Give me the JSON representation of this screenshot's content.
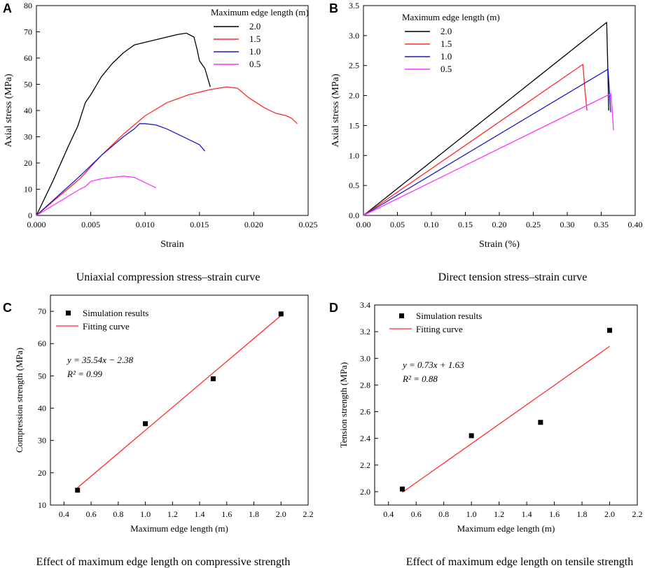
{
  "figure": {
    "panels": [
      {
        "letter": "A",
        "caption": "Uniaxial compression stress–strain curve"
      },
      {
        "letter": "B",
        "caption": "Direct tension stress–strain curve"
      },
      {
        "letter": "C",
        "caption": "Effect of maximum edge length on compressive strength"
      },
      {
        "letter": "D",
        "caption": "Effect of maximum edge length on tensile strength"
      }
    ]
  },
  "chart_data": [
    {
      "id": "A",
      "type": "line",
      "xlabel": "Strain",
      "ylabel": "Axial stress (MPa)",
      "xlim": [
        0,
        0.025
      ],
      "ylim": [
        0,
        80
      ],
      "xticks": [
        "0.000",
        "0.005",
        "0.010",
        "0.015",
        "0.020",
        "0.025"
      ],
      "yticks": [
        "0",
        "10",
        "20",
        "30",
        "40",
        "50",
        "60",
        "70",
        "80"
      ],
      "legend_title": "Maximum edge length (m)",
      "legend_position": "top-right",
      "series": [
        {
          "name": "2.0",
          "color": "#000000",
          "x": [
            0,
            0.0015,
            0.003,
            0.0038,
            0.0045,
            0.005,
            0.006,
            0.007,
            0.008,
            0.009,
            0.01,
            0.011,
            0.012,
            0.013,
            0.0138,
            0.0145,
            0.0148,
            0.015,
            0.0155,
            0.016
          ],
          "y": [
            0,
            13,
            27,
            34,
            43,
            46,
            53,
            58,
            62,
            65,
            66,
            67,
            68,
            69,
            69.5,
            68,
            63,
            59,
            56,
            49
          ]
        },
        {
          "name": "1.5",
          "color": "#ff2a2a",
          "x": [
            0,
            0.002,
            0.004,
            0.006,
            0.008,
            0.01,
            0.012,
            0.014,
            0.016,
            0.0175,
            0.0185,
            0.0195,
            0.021,
            0.022,
            0.023,
            0.0235,
            0.024
          ],
          "y": [
            0,
            7,
            14,
            23,
            31,
            38,
            43,
            46,
            48,
            49,
            48.5,
            45,
            41,
            39,
            38,
            37,
            35
          ]
        },
        {
          "name": "1.0",
          "color": "#1a1acc",
          "x": [
            0,
            0.002,
            0.004,
            0.006,
            0.008,
            0.009,
            0.0095,
            0.01,
            0.011,
            0.012,
            0.013,
            0.014,
            0.015,
            0.0155
          ],
          "y": [
            0,
            7.5,
            15,
            23,
            30,
            33,
            35,
            35,
            34.5,
            33,
            31,
            29,
            27,
            24.5
          ]
        },
        {
          "name": "0.5",
          "color": "#ff33ff",
          "x": [
            0,
            0.002,
            0.004,
            0.0045,
            0.005,
            0.006,
            0.007,
            0.008,
            0.009,
            0.01,
            0.011
          ],
          "y": [
            0,
            5,
            10,
            11,
            13,
            14,
            14.5,
            15,
            14.5,
            12.5,
            10.5
          ]
        }
      ]
    },
    {
      "id": "B",
      "type": "line",
      "xlabel": "Strain (%)",
      "ylabel": "Axial stress (MPa)",
      "xlim": [
        0,
        0.4
      ],
      "ylim": [
        0,
        3.5
      ],
      "xticks": [
        "0.00",
        "0.05",
        "0.10",
        "0.15",
        "0.20",
        "0.25",
        "0.30",
        "0.35",
        "0.40"
      ],
      "yticks": [
        "0.0",
        "0.5",
        "1.0",
        "1.5",
        "2.0",
        "2.5",
        "3.0",
        "3.5"
      ],
      "legend_title": "Maximum edge length (m)",
      "legend_position": "top-left",
      "series": [
        {
          "name": "2.0",
          "color": "#000000",
          "x": [
            0,
            0.358,
            0.36,
            0.361
          ],
          "y": [
            0,
            3.22,
            2.3,
            1.75
          ]
        },
        {
          "name": "1.5",
          "color": "#ff2a2a",
          "x": [
            0,
            0.323,
            0.326,
            0.329
          ],
          "y": [
            0,
            2.52,
            2.1,
            1.75
          ]
        },
        {
          "name": "1.0",
          "color": "#1a1acc",
          "x": [
            0,
            0.36,
            0.362,
            0.364
          ],
          "y": [
            0,
            2.44,
            2.1,
            1.72
          ]
        },
        {
          "name": "0.5",
          "color": "#ff33ff",
          "x": [
            0,
            0.364,
            0.366,
            0.368
          ],
          "y": [
            0,
            2.03,
            1.8,
            1.42
          ]
        }
      ]
    },
    {
      "id": "C",
      "type": "scatter",
      "xlabel": "Maximum edge length (m)",
      "ylabel": "Compression strength (MPa)",
      "xlim": [
        0.3,
        2.2
      ],
      "ylim": [
        10,
        75
      ],
      "xticks": [
        "0.4",
        "0.6",
        "0.8",
        "1.0",
        "1.2",
        "1.4",
        "1.6",
        "1.8",
        "2.0",
        "2.2"
      ],
      "yticks": [
        "10",
        "20",
        "30",
        "40",
        "50",
        "60",
        "70"
      ],
      "legend": [
        "Simulation results",
        "Fitting curve"
      ],
      "legend_position": "top-left",
      "points": {
        "x": [
          0.5,
          1.0,
          1.5,
          2.0
        ],
        "y": [
          14.6,
          35.2,
          49.1,
          69.2
        ]
      },
      "fit": {
        "x": [
          0.5,
          2.0
        ],
        "y": [
          15.39,
          68.7
        ],
        "color": "#ff2a2a"
      },
      "equation": "y = 35.54x − 2.38",
      "r2": "R² = 0.99"
    },
    {
      "id": "D",
      "type": "scatter",
      "xlabel": "Maximum edge length (m)",
      "ylabel": "Tension strength (MPa)",
      "xlim": [
        0.3,
        2.2
      ],
      "ylim": [
        1.9,
        3.4
      ],
      "xticks": [
        "0.4",
        "0.6",
        "0.8",
        "1.0",
        "1.2",
        "1.4",
        "1.6",
        "1.8",
        "2.0",
        "2.2"
      ],
      "yticks": [
        "2.0",
        "2.2",
        "2.4",
        "2.6",
        "2.8",
        "3.0",
        "3.2",
        "3.4"
      ],
      "legend": [
        "Simulation results",
        "Fitting curve"
      ],
      "legend_position": "top-left",
      "points": {
        "x": [
          0.5,
          1.0,
          1.5,
          2.0
        ],
        "y": [
          2.02,
          2.42,
          2.52,
          3.21
        ]
      },
      "fit": {
        "x": [
          0.5,
          2.0
        ],
        "y": [
          1.995,
          3.09
        ],
        "color": "#ff2a2a"
      },
      "equation": "y = 0.73x + 1.63",
      "r2": "R² = 0.88"
    }
  ]
}
